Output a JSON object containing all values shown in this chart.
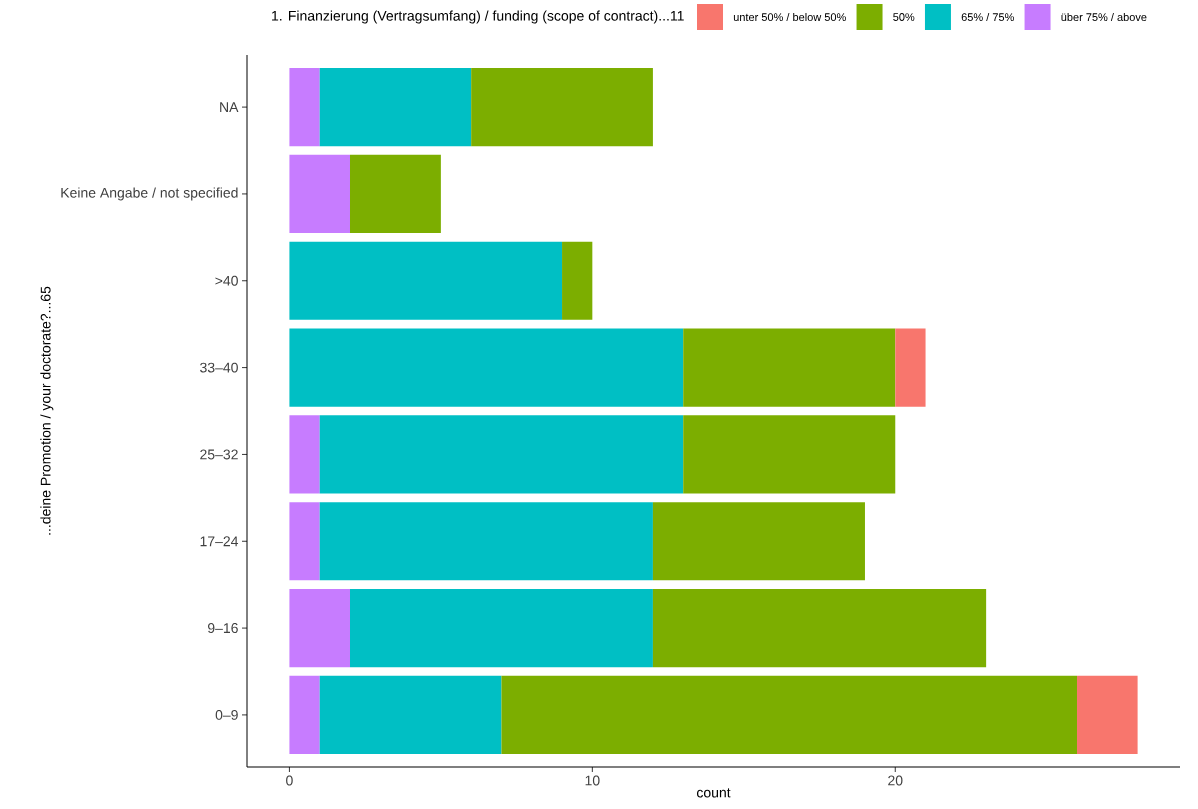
{
  "chart_data": {
    "type": "bar",
    "orientation": "horizontal",
    "stacked": true,
    "legend_title": "1. Finanzierung (Vertragsumfang) / funding (scope of contract)...11",
    "xlabel": "count",
    "ylabel": "...deine Promotion / your doctorate?...65",
    "categories": [
      "NA",
      "Keine Angabe / not specified",
      ">40",
      "33–40",
      "25–32",
      "17–24",
      "9–16",
      "0–9"
    ],
    "series": [
      {
        "name": "über 75% / above",
        "color": "#c77cff",
        "values": [
          1,
          2,
          null,
          null,
          1,
          1,
          2,
          1
        ]
      },
      {
        "name": "65% / 75%",
        "color": "#00bfc4",
        "values": [
          5,
          null,
          9,
          13,
          12,
          11,
          10,
          6
        ]
      },
      {
        "name": "50%",
        "color": "#7cae00",
        "values": [
          6,
          3,
          1,
          7,
          7,
          7,
          11,
          19
        ]
      },
      {
        "name": "unter 50% / below 50%",
        "color": "#f8766d",
        "values": [
          null,
          null,
          null,
          1,
          null,
          null,
          null,
          2
        ]
      }
    ],
    "xlim": [
      -1.4,
      29.4
    ],
    "xticks": [
      0,
      10,
      20
    ],
    "grid": false,
    "legend": "top"
  }
}
